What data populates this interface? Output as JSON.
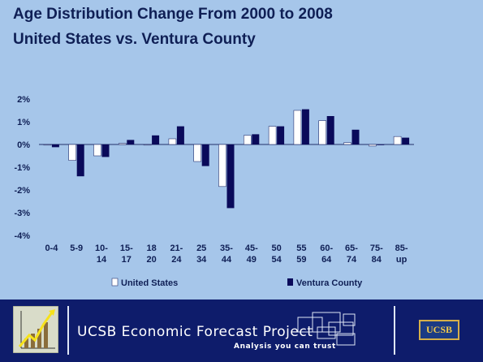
{
  "title": "Age Distribution Change From 2000 to 2008",
  "subtitle": "United States vs. Ventura County",
  "footer": {
    "project_name": "UCSB Economic Forecast Project",
    "tagline": "Analysis you can trust",
    "badge_text": "UCSB"
  },
  "colors": {
    "background": "#a6c6ea",
    "united_states": "#ffffff",
    "ventura_county": "#0a0a5a",
    "footer": "#0e1c6b"
  },
  "chart_data": {
    "type": "bar",
    "categories": [
      [
        "0-4"
      ],
      [
        "5-9"
      ],
      [
        "10-",
        "14"
      ],
      [
        "15-",
        "17"
      ],
      [
        "18",
        "20"
      ],
      [
        "21-",
        "24"
      ],
      [
        "25",
        "34"
      ],
      [
        "35-",
        "44"
      ],
      [
        "45-",
        "49"
      ],
      [
        "50",
        "54"
      ],
      [
        "55",
        "59"
      ],
      [
        "60-",
        "64"
      ],
      [
        "65-",
        "74"
      ],
      [
        "75-",
        "84"
      ],
      [
        "85-",
        "up"
      ]
    ],
    "series": [
      {
        "name": "United States",
        "color": "#ffffff",
        "values": [
          -0.02,
          -0.7,
          -0.5,
          0.05,
          0.0,
          0.25,
          -0.75,
          -1.85,
          0.4,
          0.8,
          1.5,
          1.05,
          0.08,
          -0.07,
          0.35
        ]
      },
      {
        "name": "Ventura County",
        "color": "#0a0a5a",
        "values": [
          -0.12,
          -1.4,
          -0.55,
          0.2,
          0.4,
          0.8,
          -0.95,
          -2.8,
          0.45,
          0.8,
          1.55,
          1.25,
          0.65,
          0.0,
          0.3
        ]
      }
    ],
    "yticks": [
      2,
      1,
      0,
      -1,
      -2,
      -3,
      -4
    ],
    "ytick_labels": [
      "2%",
      "1%",
      "0%",
      "-1%",
      "-2%",
      "-3%",
      "-4%"
    ],
    "ylim": [
      -4,
      2
    ],
    "legend_position": "bottom",
    "grid": false
  }
}
